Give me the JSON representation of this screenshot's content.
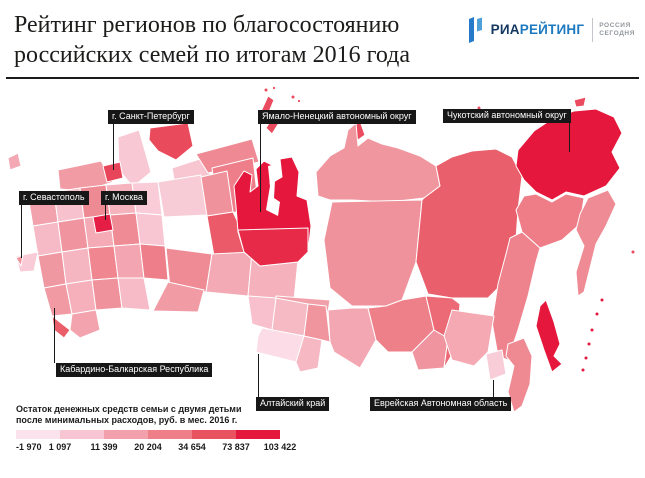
{
  "header": {
    "title_line1": "Рейтинг регионов по благосостоянию",
    "title_line2": "российских семей по итогам 2016 года",
    "brand": {
      "name_part1": "РИА",
      "name_part2": "РЕЙТИНГ",
      "agency_line1": "РОССИЯ",
      "agency_line2": "СЕГОДНЯ",
      "accent_blue": "#1e7ac0",
      "dark_navy": "#14375f"
    }
  },
  "map": {
    "callouts": [
      {
        "id": "spb",
        "label": "г. Санкт-Петербург"
      },
      {
        "id": "yanao",
        "label": "Ямало-Ненецкий автономный округ"
      },
      {
        "id": "chukotka",
        "label": "Чукотский автономный округ"
      },
      {
        "id": "sevastopol",
        "label": "г. Севастополь"
      },
      {
        "id": "moscow",
        "label": "г. Москва"
      },
      {
        "id": "kbr",
        "label": "Кабардино-Балкарская Республика"
      },
      {
        "id": "altai",
        "label": "Алтайский край"
      },
      {
        "id": "jao",
        "label": "Еврейская Автономная область"
      }
    ]
  },
  "legend": {
    "caption_line1": "Остаток денежных средств семьи с двумя детьми",
    "caption_line2": "после минимальных расходов, руб. в мес. 2016 г.",
    "values": [
      "-1 970",
      "1 097",
      "11 399",
      "20 204",
      "34 654",
      "73 837",
      "103 422"
    ],
    "colors": [
      "#fbe3ee",
      "#f8c6d3",
      "#f2a0ab",
      "#ee7f89",
      "#e9525f",
      "#e4183c"
    ]
  }
}
